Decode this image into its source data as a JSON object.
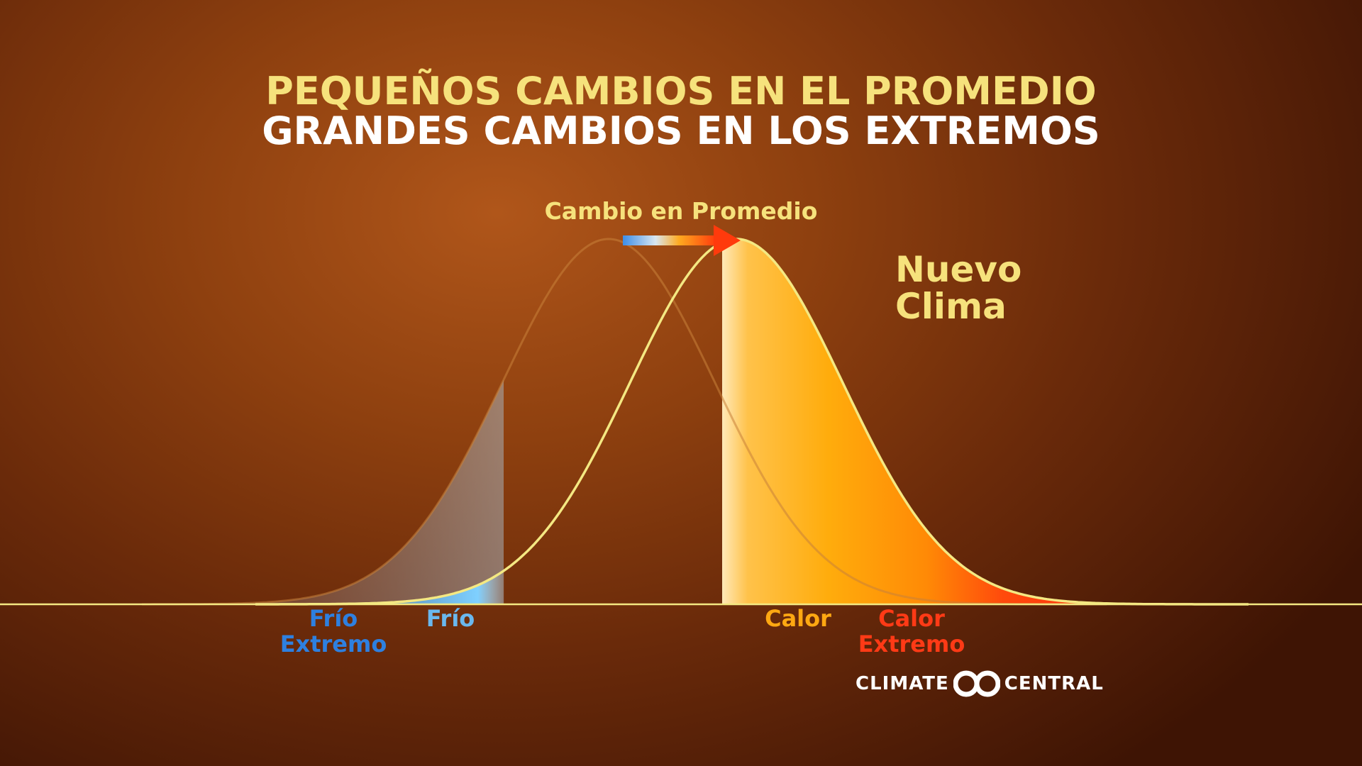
{
  "title": {
    "line1": "PEQUEÑOS CAMBIOS EN EL PROMEDIO",
    "line2": "GRANDES CAMBIOS EN LOS EXTREMOS"
  },
  "annotations": {
    "mean_shift": "Cambio en Promedio",
    "new_climate": [
      "Nuevo",
      "Clima"
    ]
  },
  "axis_labels": {
    "cold_extreme": [
      "Frío",
      "Extremo"
    ],
    "cold": "Frío",
    "heat": "Calor",
    "heat_extreme": [
      "Calor",
      "Extremo"
    ]
  },
  "logo": {
    "left": "CLIMATE",
    "right": "CENTRAL"
  },
  "colors": {
    "title_yellow": "#f6e27c",
    "title_white": "#ffffff",
    "curve": "#f4e882",
    "cold_extreme": "#2e80e0",
    "cold": "#6ab8ee",
    "heat": "#ffa812",
    "heat_extreme": "#ff3a16"
  }
}
